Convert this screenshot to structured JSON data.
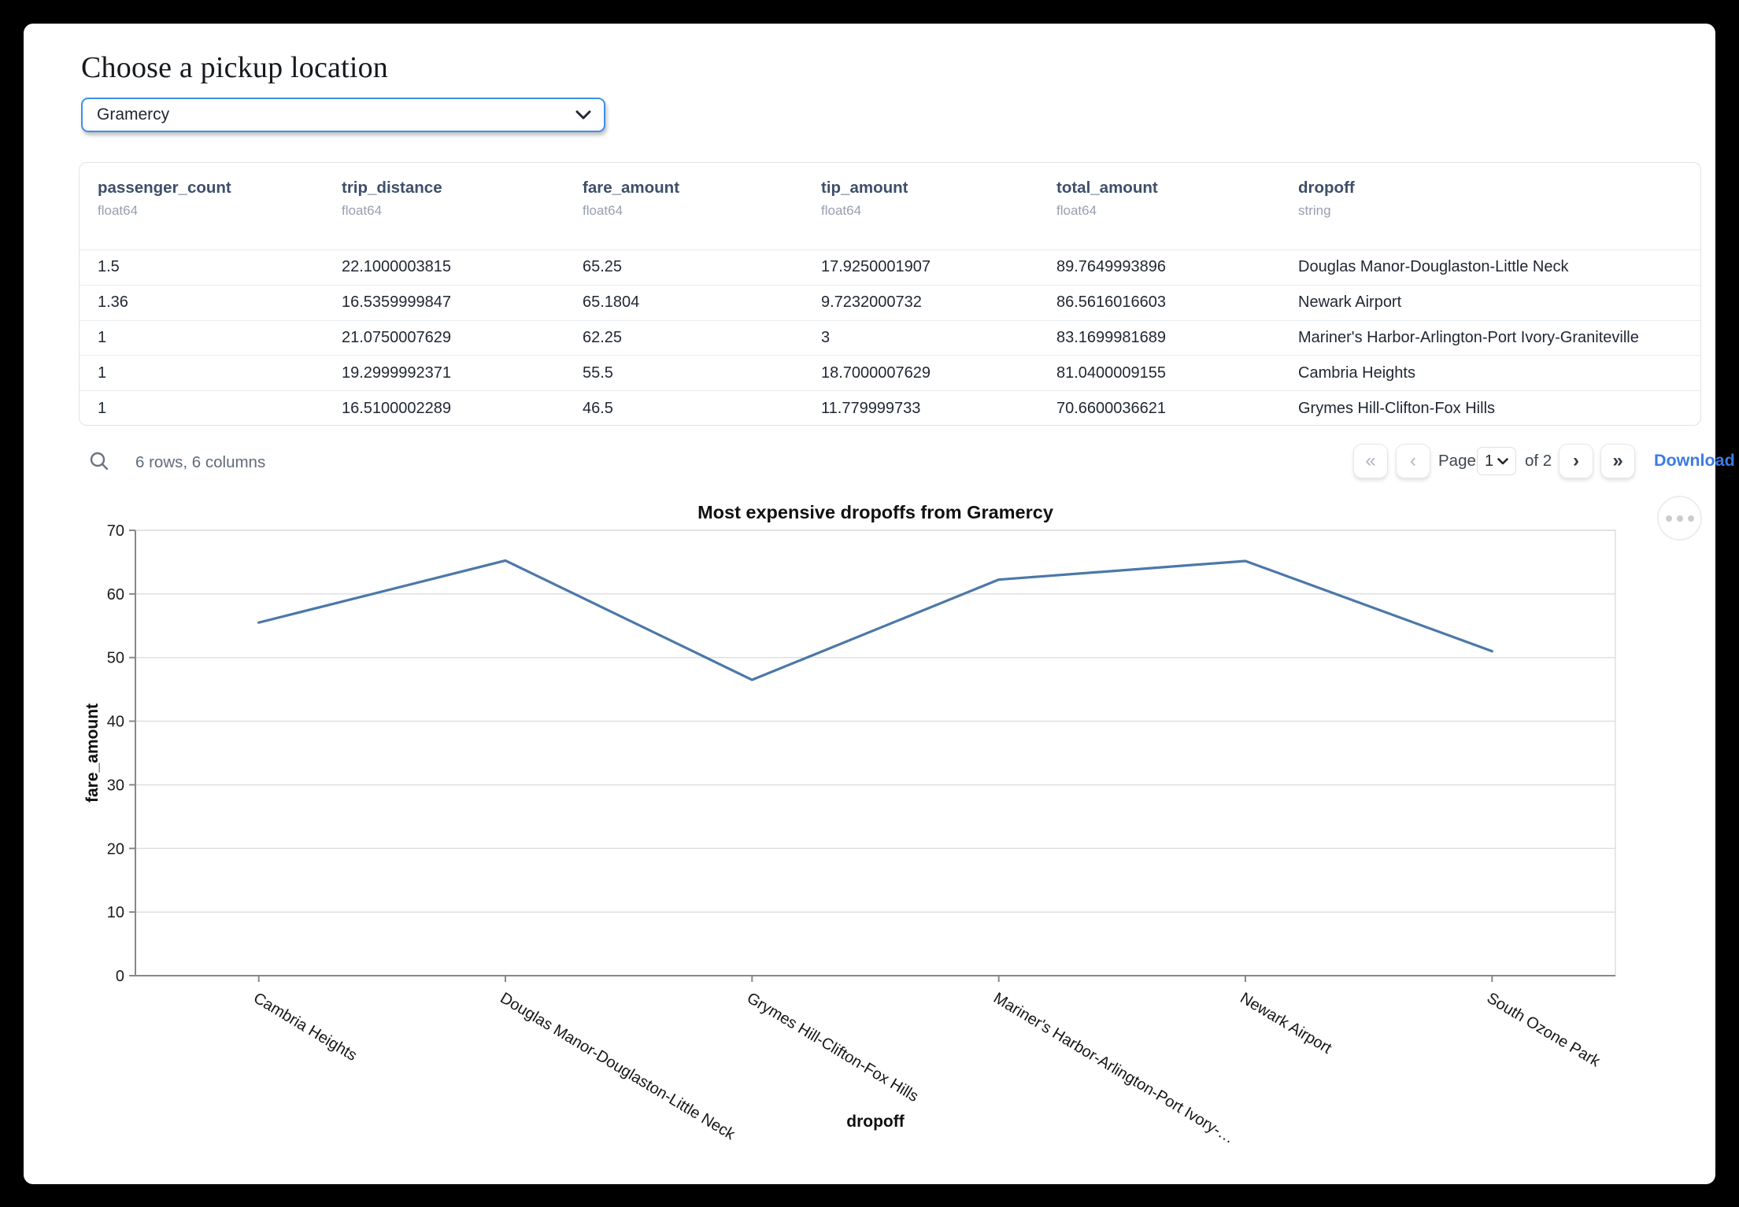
{
  "header": {
    "title": "Choose a pickup location"
  },
  "pickup_select": {
    "value": "Gramercy"
  },
  "table": {
    "columns": [
      {
        "name": "passenger_count",
        "type": "float64"
      },
      {
        "name": "trip_distance",
        "type": "float64"
      },
      {
        "name": "fare_amount",
        "type": "float64"
      },
      {
        "name": "tip_amount",
        "type": "float64"
      },
      {
        "name": "total_amount",
        "type": "float64"
      },
      {
        "name": "dropoff",
        "type": "string"
      }
    ],
    "rows": [
      [
        "1.5",
        "22.1000003815",
        "65.25",
        "17.9250001907",
        "89.7649993896",
        "Douglas Manor-Douglaston-Little Neck"
      ],
      [
        "1.36",
        "16.5359999847",
        "65.1804",
        "9.7232000732",
        "86.5616016603",
        "Newark Airport"
      ],
      [
        "1",
        "21.0750007629",
        "62.25",
        "3",
        "83.1699981689",
        "Mariner's Harbor-Arlington-Port Ivory-Graniteville"
      ],
      [
        "1",
        "19.2999992371",
        "55.5",
        "18.7000007629",
        "81.0400009155",
        "Cambria Heights"
      ],
      [
        "1",
        "16.5100002289",
        "46.5",
        "11.779999733",
        "70.6600036621",
        "Grymes Hill-Clifton-Fox Hills"
      ]
    ]
  },
  "table_footer": {
    "summary": "6 rows, 6 columns",
    "page_label": "Page",
    "page_value": "1",
    "of_label": "of 2",
    "download_label": "Download"
  },
  "icons": {
    "first_page": "«",
    "prev_page": "‹",
    "next_page": "›",
    "last_page": "»"
  },
  "chart_data": {
    "type": "line",
    "title": "Most expensive dropoffs from Gramercy",
    "xlabel": "dropoff",
    "ylabel": "fare_amount",
    "categories": [
      "Cambria Heights",
      "Douglas Manor-Douglaston-Little Neck",
      "Grymes Hill-Clifton-Fox Hills",
      "Mariner's Harbor-Arlington-Port Ivory-…",
      "Newark Airport",
      "South Ozone Park"
    ],
    "values": [
      55.5,
      65.25,
      46.5,
      62.25,
      65.18,
      51.0
    ],
    "ylim": [
      0,
      70
    ],
    "yticks": [
      0,
      10,
      20,
      30,
      40,
      50,
      60,
      70
    ],
    "grid": true,
    "legend": "none",
    "line_color": "#4c78a8",
    "grid_color": "#dddddd",
    "axis_color": "#888888"
  }
}
